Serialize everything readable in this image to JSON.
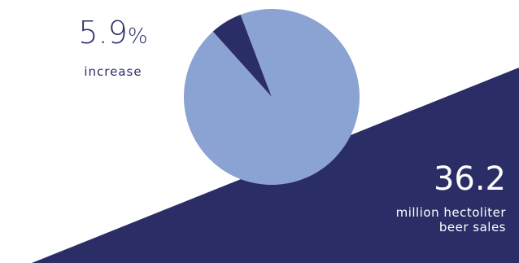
{
  "colors": {
    "background": "#ffffff",
    "dark_navy": "#2b2d66",
    "pie_light": "#8aa3d2",
    "pie_dark": "#2b2d66",
    "text_light": "#ffffff"
  },
  "stats": {
    "increase": {
      "value": "5.9",
      "unit": "%",
      "label": "increase"
    },
    "sales": {
      "value": "36.2",
      "label_line1": "million hectoliter",
      "label_line2": "beer sales"
    }
  },
  "chart_data": {
    "type": "pie",
    "title": "",
    "slices": [
      {
        "value": 5.9,
        "color": "#2b2d66"
      },
      {
        "value": 94.1,
        "color": "#8aa3d2"
      }
    ],
    "start_direction": "top-left, counter-clockwise from slightly left of 12 o'clock",
    "legend": "none"
  }
}
